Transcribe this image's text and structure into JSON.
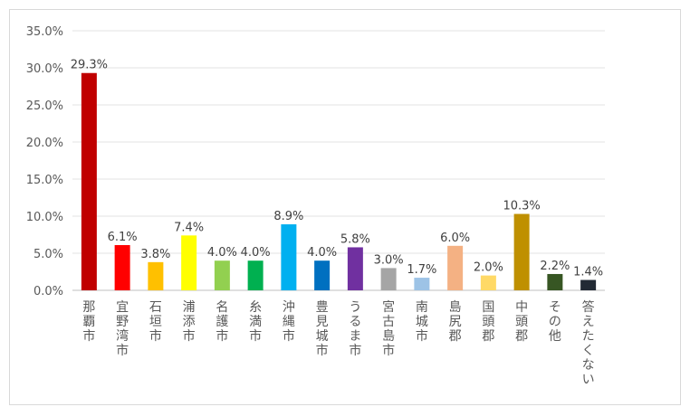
{
  "chart_data": {
    "type": "bar",
    "title": "",
    "xlabel": "",
    "ylabel": "",
    "ylim": [
      0,
      35
    ],
    "yticks": [
      "0.0%",
      "5.0%",
      "10.0%",
      "15.0%",
      "20.0%",
      "25.0%",
      "30.0%",
      "35.0%"
    ],
    "grid": true,
    "categories": [
      "那覇市",
      "宜野湾市",
      "石垣市",
      "浦添市",
      "名護市",
      "糸満市",
      "沖縄市",
      "豊見城市",
      "うるま市",
      "宮古島市",
      "南城市",
      "島尻郡",
      "国頭郡",
      "中頭郡",
      "その他",
      "答えたくない"
    ],
    "values": [
      29.3,
      6.1,
      3.8,
      7.4,
      4.0,
      4.0,
      8.9,
      4.0,
      5.8,
      3.0,
      1.7,
      6.0,
      2.0,
      10.3,
      2.2,
      1.4
    ],
    "data_labels": [
      "29.3%",
      "6.1%",
      "3.8%",
      "7.4%",
      "4.0%",
      "4.0%",
      "8.9%",
      "4.0%",
      "5.8%",
      "3.0%",
      "1.7%",
      "6.0%",
      "2.0%",
      "10.3%",
      "2.2%",
      "1.4%"
    ],
    "colors": [
      "#c00000",
      "#ff0000",
      "#ffc000",
      "#ffff00",
      "#92d050",
      "#00b050",
      "#00b0f0",
      "#0070c0",
      "#7030a0",
      "#a5a5a5",
      "#9dc3e6",
      "#f4b183",
      "#ffd966",
      "#bf9000",
      "#375623",
      "#222a35"
    ]
  }
}
